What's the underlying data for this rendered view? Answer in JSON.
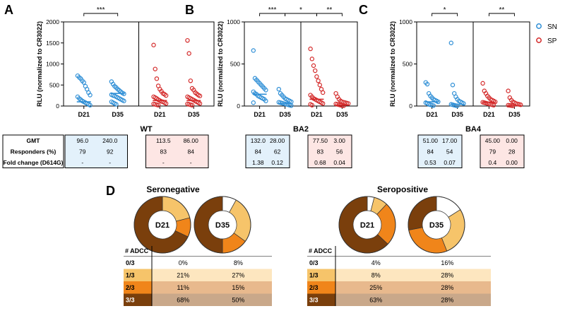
{
  "colors": {
    "sn": "#2f8fd6",
    "sp": "#d42a2a",
    "sn_fill": "#e3f1fb",
    "sp_fill": "#fde6e4",
    "adcc_0": "#ffffff",
    "adcc_1": "#f6c46a",
    "adcc_2": "#f0851a",
    "adcc_3": "#7a3f0c",
    "row_1": "#fde6bf",
    "row_2": "#e8b98d",
    "row_3": "#c9a88a"
  },
  "panel_labels": {
    "a": "A",
    "b": "B",
    "c": "C",
    "d": "D"
  },
  "legend": {
    "sn": "SN",
    "sp": "SP"
  },
  "stats_row_labels": [
    "GMT",
    "Responders (%)",
    "Fold change (D614G)"
  ],
  "chart_data": [
    {
      "type": "scatter",
      "panel": "A",
      "variant": "WT",
      "ylabel": "RLU (normalized to CR3022)",
      "ylim": [
        0,
        2000
      ],
      "yticks": [
        "0",
        "500",
        "1000",
        "1500",
        "2000"
      ],
      "categories": [
        "D21",
        "D35"
      ],
      "significance": [
        {
          "label": "***",
          "from": 0,
          "to": 1
        }
      ],
      "series": [
        {
          "name": "SN",
          "group": 0,
          "day": 0,
          "values": [
            720,
            680,
            650,
            600,
            560,
            470,
            400,
            320,
            260,
            220,
            180,
            150,
            120,
            100,
            80,
            60,
            40,
            20
          ]
        },
        {
          "name": "SN",
          "group": 0,
          "day": 1,
          "values": [
            580,
            520,
            470,
            440,
            400,
            370,
            340,
            310,
            290,
            270,
            250,
            240,
            220,
            200,
            180,
            160,
            140,
            120,
            100,
            80,
            60,
            40
          ]
        },
        {
          "name": "SP",
          "group": 1,
          "day": 0,
          "values": [
            1450,
            880,
            650,
            480,
            400,
            350,
            300,
            280,
            250,
            220,
            200,
            180,
            150,
            130,
            110,
            100,
            80,
            60,
            50,
            40,
            30,
            20
          ]
        },
        {
          "name": "SP",
          "group": 1,
          "day": 1,
          "values": [
            1560,
            1250,
            600,
            420,
            380,
            320,
            290,
            260,
            240,
            220,
            200,
            180,
            160,
            140,
            120,
            100,
            80,
            60,
            50,
            40,
            30,
            20
          ]
        }
      ],
      "medians": [
        [
          100,
          300
        ],
        [
          130,
          130
        ]
      ],
      "stats": [
        {
          "gmt": [
            "96.0",
            "240.0"
          ],
          "responders": [
            "79",
            "92"
          ],
          "fold": [
            "-",
            "-"
          ]
        },
        {
          "gmt": [
            "113.5",
            "86.00"
          ],
          "responders": [
            "83",
            "84"
          ],
          "fold": [
            "-",
            "-"
          ]
        }
      ]
    },
    {
      "type": "scatter",
      "panel": "B",
      "variant": "BA2",
      "ylabel": "RLU (normalized to CR3022)",
      "ylim": [
        0,
        1000
      ],
      "yticks": [
        "0",
        "500",
        "1000"
      ],
      "categories": [
        "D21",
        "D35"
      ],
      "significance": [
        {
          "label": "***",
          "from": 0,
          "to": 1
        },
        {
          "label": "*",
          "from": 1,
          "to": 2
        },
        {
          "label": "**",
          "from": 2,
          "to": 3
        }
      ],
      "series": [
        {
          "name": "SN",
          "group": 0,
          "day": 0,
          "values": [
            660,
            330,
            310,
            290,
            270,
            250,
            230,
            210,
            190,
            170,
            150,
            140,
            120,
            110,
            100,
            90,
            80,
            60,
            40
          ]
        },
        {
          "name": "SN",
          "group": 0,
          "day": 1,
          "values": [
            200,
            150,
            130,
            110,
            90,
            80,
            70,
            60,
            50,
            45,
            40,
            35,
            30,
            25,
            20,
            15,
            10,
            5
          ]
        },
        {
          "name": "SP",
          "group": 1,
          "day": 0,
          "values": [
            680,
            560,
            480,
            420,
            350,
            300,
            250,
            200,
            160,
            130,
            110,
            90,
            80,
            70,
            60,
            50,
            40,
            30,
            20,
            10
          ]
        },
        {
          "name": "SP",
          "group": 1,
          "day": 1,
          "values": [
            150,
            110,
            80,
            60,
            50,
            45,
            40,
            35,
            30,
            25,
            20,
            15,
            10,
            5,
            3
          ]
        }
      ],
      "medians": [
        [
          140,
          30
        ],
        [
          80,
          10
        ]
      ],
      "stats": [
        {
          "gmt": [
            "132.0",
            "28.00"
          ],
          "responders": [
            "84",
            "62"
          ],
          "fold": [
            "1.38",
            "0.12"
          ]
        },
        {
          "gmt": [
            "77.50",
            "3.00"
          ],
          "responders": [
            "83",
            "56"
          ],
          "fold": [
            "0.68",
            "0.04"
          ]
        }
      ]
    },
    {
      "type": "scatter",
      "panel": "C",
      "variant": "BA4",
      "ylabel": "RLU (normalized to CR3022)",
      "ylim": [
        0,
        1000
      ],
      "yticks": [
        "0",
        "500",
        "1000"
      ],
      "categories": [
        "D21",
        "D35"
      ],
      "significance": [
        {
          "label": "*",
          "from": 0,
          "to": 1
        },
        {
          "label": "**",
          "from": 2,
          "to": 3
        }
      ],
      "series": [
        {
          "name": "SN",
          "group": 0,
          "day": 0,
          "values": [
            280,
            260,
            150,
            120,
            100,
            80,
            70,
            60,
            50,
            40,
            30,
            20,
            15,
            10,
            5
          ]
        },
        {
          "name": "SN",
          "group": 0,
          "day": 1,
          "values": [
            750,
            250,
            150,
            110,
            80,
            60,
            50,
            40,
            30,
            20,
            15,
            10,
            5,
            3
          ]
        },
        {
          "name": "SP",
          "group": 1,
          "day": 0,
          "values": [
            270,
            180,
            150,
            120,
            100,
            80,
            70,
            60,
            50,
            45,
            40,
            35,
            30,
            25,
            20,
            15,
            10
          ]
        },
        {
          "name": "SP",
          "group": 1,
          "day": 1,
          "values": [
            180,
            100,
            70,
            50,
            40,
            30,
            25,
            20,
            15,
            10,
            8,
            5,
            3
          ]
        }
      ],
      "medians": [
        [
          50,
          20
        ],
        [
          45,
          5
        ]
      ],
      "stats": [
        {
          "gmt": [
            "51.00",
            "17.00"
          ],
          "responders": [
            "84",
            "54"
          ],
          "fold": [
            "0.53",
            "0.07"
          ]
        },
        {
          "gmt": [
            "45.00",
            "0.00"
          ],
          "responders": [
            "79",
            "28"
          ],
          "fold": [
            "0.4",
            "0.00"
          ]
        }
      ]
    },
    {
      "type": "pie",
      "panel": "D",
      "groups": [
        {
          "title": "Seronegative",
          "days": [
            "D21",
            "D35"
          ],
          "rows": [
            {
              "label": "0/3",
              "values": [
                "0%",
                "8%"
              ]
            },
            {
              "label": "1/3",
              "values": [
                "21%",
                "27%"
              ]
            },
            {
              "label": "2/3",
              "values": [
                "11%",
                "15%"
              ]
            },
            {
              "label": "3/3",
              "values": [
                "68%",
                "50%"
              ]
            }
          ],
          "donuts": [
            [
              0,
              21,
              11,
              68
            ],
            [
              8,
              27,
              15,
              50
            ]
          ]
        },
        {
          "title": "Seropositive",
          "days": [
            "D21",
            "D35"
          ],
          "rows": [
            {
              "label": "0/3",
              "values": [
                "4%",
                "16%"
              ]
            },
            {
              "label": "1/3",
              "values": [
                "8%",
                "28%"
              ]
            },
            {
              "label": "2/3",
              "values": [
                "25%",
                "28%"
              ]
            },
            {
              "label": "3/3",
              "values": [
                "63%",
                "28%"
              ]
            }
          ],
          "donuts": [
            [
              4,
              8,
              25,
              63
            ],
            [
              16,
              28,
              28,
              28
            ]
          ]
        }
      ],
      "header": "# ADCC"
    }
  ]
}
